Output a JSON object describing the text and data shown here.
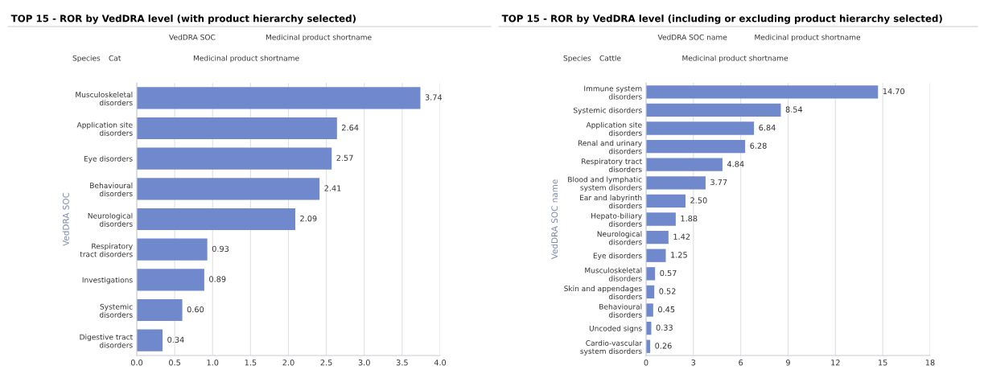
{
  "chart_data": [
    {
      "type": "bar",
      "orientation": "horizontal",
      "title": "TOP 15 - ROR by VedDRA level (with product hierarchy selected)",
      "ylabel": "VedDRA SOC",
      "annotations": [
        "VedDRA SOC",
        "Medicinal product shortname",
        "Species",
        "Cat",
        "Medicinal product shortname"
      ],
      "categories": [
        "Musculoskeletal\ndisorders",
        "Application site\ndisorders",
        "Eye disorders",
        "Behavioural\ndisorders",
        "Neurological\ndisorders",
        "Respiratory\ntract disorders",
        "Investigations",
        "Systemic\ndisorders",
        "Digestive tract\ndisorders"
      ],
      "values": [
        3.74,
        2.64,
        2.57,
        2.41,
        2.09,
        0.93,
        0.89,
        0.6,
        0.34
      ],
      "value_labels": [
        "3.74",
        "2.64",
        "2.57",
        "2.41",
        "2.09",
        "0.93",
        "0.89",
        "0.60",
        "0.34"
      ],
      "color": "#7088cc",
      "xlim": [
        0,
        4
      ],
      "xticks": [
        {
          "value": 0,
          "label": "0.0"
        },
        {
          "value": 0.5,
          "label": "0.5"
        },
        {
          "value": 1,
          "label": "1.0"
        },
        {
          "value": 1.5,
          "label": "1.5"
        },
        {
          "value": 2,
          "label": "2.0"
        },
        {
          "value": 2.5,
          "label": "2.5"
        },
        {
          "value": 3,
          "label": "3.0"
        },
        {
          "value": 3.5,
          "label": "3.5"
        },
        {
          "value": 4,
          "label": "4.0"
        }
      ],
      "grid": "x"
    },
    {
      "type": "bar",
      "orientation": "horizontal",
      "title": "TOP 15 - ROR by VedDRA level (including or excluding product hierarchy selected)",
      "ylabel": "VedDRA SOC name",
      "annotations": [
        "VedDRA SOC name",
        "Medicinal product shortname",
        "Species",
        "Cattle",
        "Medicinal product shortname"
      ],
      "categories": [
        "Immune system\ndisorders",
        "Systemic disorders",
        "Application site\ndisorders",
        "Renal and urinary\ndisorders",
        "Respiratory tract\ndisorders",
        "Blood and lymphatic\nsystem disorders",
        "Ear and labyrinth\ndisorders",
        "Hepato-biliary\ndisorders",
        "Neurological\ndisorders",
        "Eye disorders",
        "Musculoskeletal\ndisorders",
        "Skin and appendages\ndisorders",
        "Behavioural\ndisorders",
        "Uncoded signs",
        "Cardio-vascular\nsystem disorders"
      ],
      "values": [
        14.7,
        8.54,
        6.84,
        6.28,
        4.84,
        3.77,
        2.5,
        1.88,
        1.42,
        1.25,
        0.57,
        0.52,
        0.45,
        0.33,
        0.26
      ],
      "value_labels": [
        "14.70",
        "8.54",
        "6.84",
        "6.28",
        "4.84",
        "3.77",
        "2.50",
        "1.88",
        "1.42",
        "1.25",
        "0.57",
        "0.52",
        "0.45",
        "0.33",
        "0.26"
      ],
      "color": "#7088cc",
      "xlim": [
        0,
        18
      ],
      "xticks": [
        0,
        3,
        6,
        9,
        12,
        15,
        18
      ],
      "grid": "x"
    }
  ]
}
